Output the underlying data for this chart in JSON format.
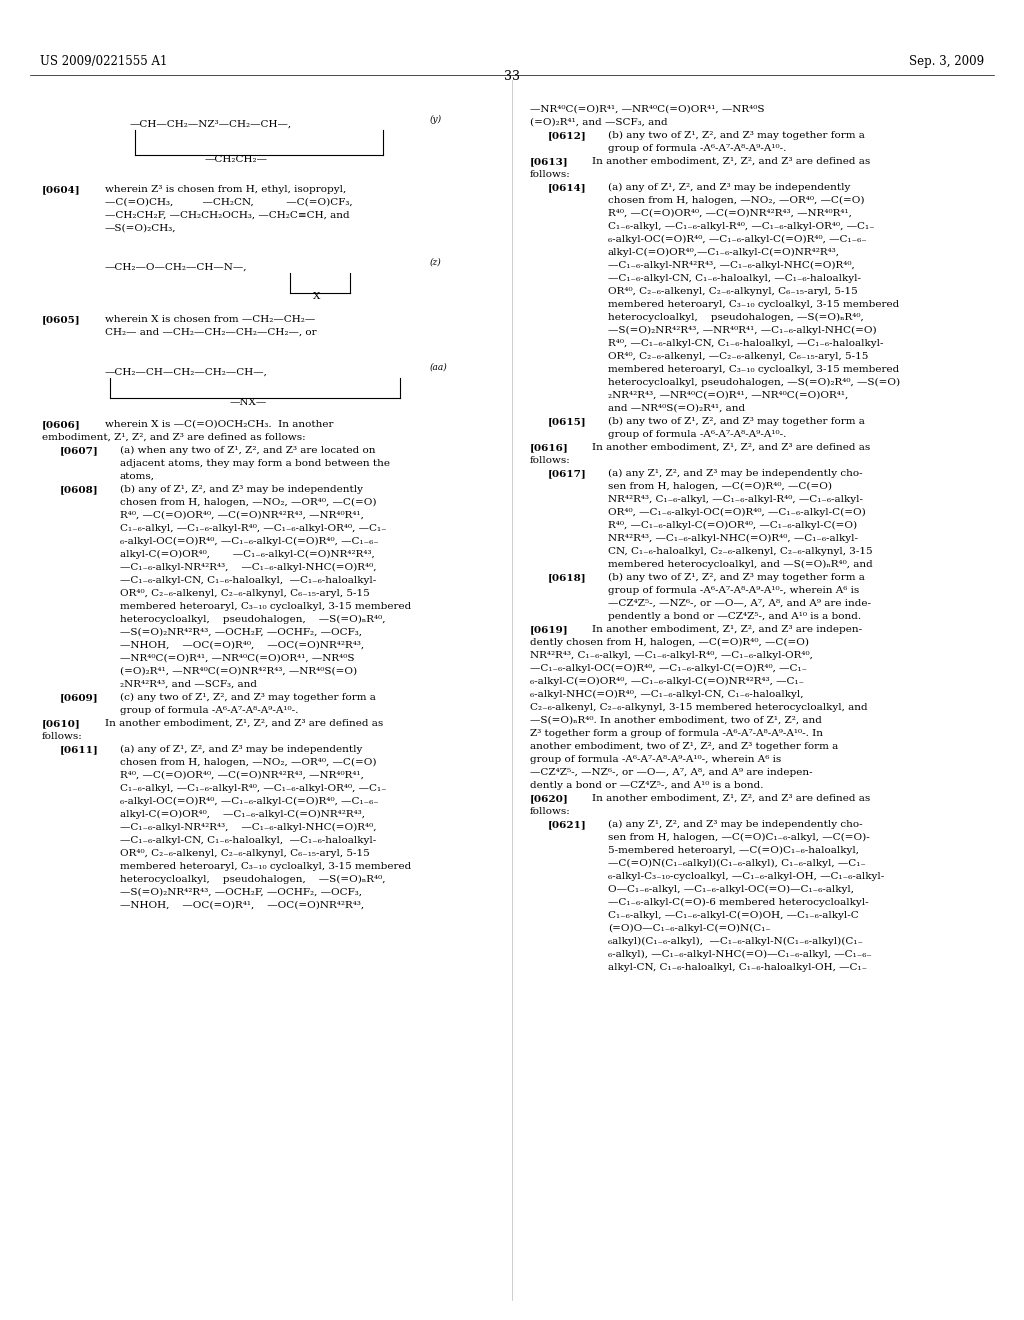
{
  "page_number": "33",
  "header_left": "US 2009/0221555 A1",
  "header_right": "Sep. 3, 2009",
  "background_color": "#ffffff",
  "text_color": "#000000",
  "font_size": 7.5
}
